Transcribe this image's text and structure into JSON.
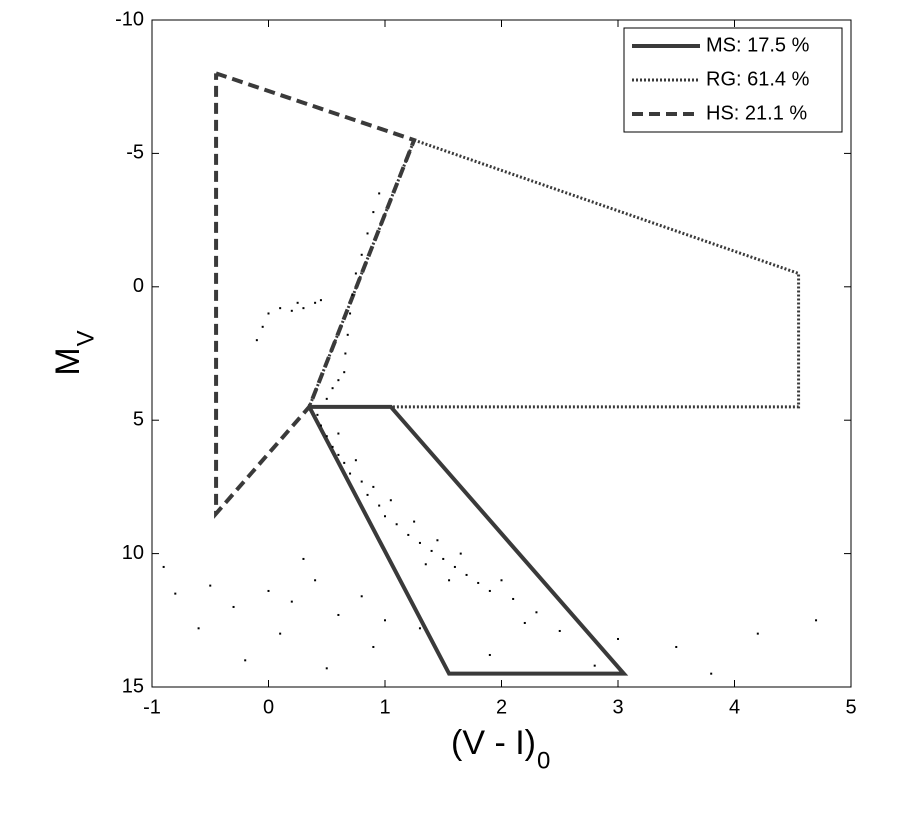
{
  "chart_data": {
    "type": "scatter",
    "xlabel": "(V - I)",
    "xlabel_subscript": "0",
    "ylabel": "M",
    "ylabel_subscript": "V",
    "xlim": [
      -1,
      5
    ],
    "xticks": [
      -1,
      0,
      1,
      2,
      3,
      4,
      5
    ],
    "ylim": [
      -10,
      15
    ],
    "yticks": [
      -10,
      -5,
      0,
      5,
      10,
      15
    ],
    "y_reversed": true,
    "legend": "upper right",
    "series": [
      {
        "name": "MS: 17.5 %",
        "kind": "outline",
        "dash": "solid",
        "color": "#3a3a3a",
        "x": [
          0.35,
          1.05,
          3.05,
          1.55,
          0.35
        ],
        "y": [
          4.5,
          4.5,
          14.5,
          14.5,
          4.5
        ]
      },
      {
        "name": "RG: 61.4 %",
        "kind": "outline",
        "dash": "dotted",
        "color": "#3a3a3a",
        "x": [
          1.25,
          4.55,
          4.55,
          0.35,
          1.25
        ],
        "y": [
          -5.5,
          -0.5,
          4.5,
          4.5,
          -5.5
        ]
      },
      {
        "name": "HS: 21.1 %",
        "kind": "outline",
        "dash": "dashed",
        "color": "#3a3a3a",
        "x": [
          -0.45,
          1.25,
          0.35,
          -0.45,
          -0.45
        ],
        "y": [
          -8,
          -5.5,
          4.5,
          8.5,
          -8
        ]
      },
      {
        "kind": "points",
        "color": "#000000",
        "x": [
          0.42,
          0.45,
          0.5,
          0.55,
          0.6,
          0.65,
          0.7,
          0.8,
          0.85,
          0.95,
          1.0,
          1.1,
          1.2,
          1.3,
          1.4,
          1.5,
          1.6,
          1.7,
          1.8,
          1.9,
          2.1,
          2.3,
          0.6,
          0.75,
          0.9,
          1.05,
          1.25,
          1.45,
          1.65,
          1.35,
          1.55,
          2.0,
          0.5,
          0.55,
          0.6,
          0.65,
          0.66,
          0.68,
          0.7,
          0.72,
          0.75,
          0.8,
          0.85,
          0.9,
          0.95,
          0.45,
          0.4,
          0.3,
          0.2,
          0.1,
          0.0,
          -0.05,
          -0.1,
          0.25,
          -0.8,
          -0.5,
          -0.3,
          0.0,
          0.2,
          0.4,
          0.6,
          0.8,
          1.0,
          -0.6,
          0.1,
          0.9,
          1.3,
          2.5,
          3.0,
          3.5,
          4.2,
          4.7,
          2.8,
          3.8,
          -0.9,
          0.3,
          1.9,
          2.2,
          -0.2,
          0.5
        ],
        "y": [
          4.8,
          5.2,
          5.6,
          6.0,
          6.3,
          6.6,
          7.0,
          7.3,
          7.8,
          8.2,
          8.6,
          8.9,
          9.3,
          9.6,
          9.9,
          10.2,
          10.5,
          10.8,
          11.1,
          11.4,
          11.7,
          12.2,
          5.5,
          6.5,
          7.5,
          8.0,
          8.8,
          9.5,
          10.0,
          10.4,
          11.0,
          11.0,
          4.2,
          3.8,
          3.5,
          3.2,
          2.5,
          1.8,
          1.0,
          0.3,
          -0.5,
          -1.2,
          -2.0,
          -2.8,
          -3.5,
          0.5,
          0.6,
          0.8,
          0.9,
          0.8,
          1.0,
          1.5,
          2.0,
          0.6,
          11.5,
          11.2,
          12.0,
          11.4,
          11.8,
          11.0,
          12.3,
          11.6,
          12.5,
          12.8,
          13.0,
          13.5,
          12.8,
          12.9,
          13.2,
          13.5,
          13.0,
          12.5,
          14.2,
          14.5,
          10.5,
          10.2,
          13.8,
          12.6,
          14.0,
          14.3
        ]
      }
    ]
  }
}
